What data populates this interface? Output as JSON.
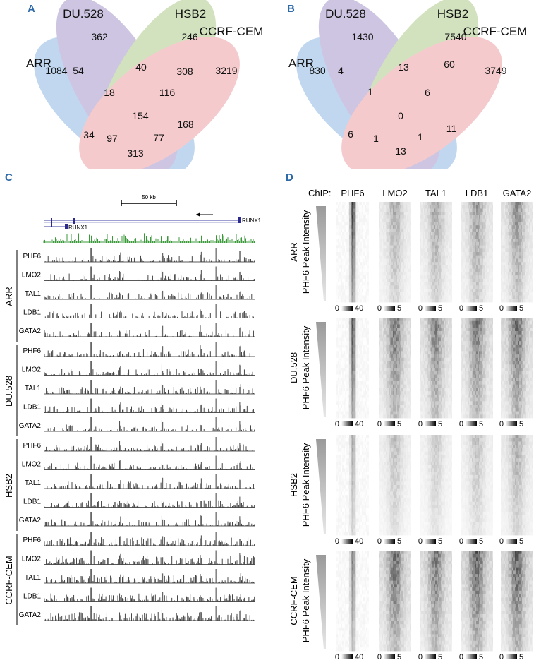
{
  "panels": {
    "a": "A",
    "b": "B",
    "c": "C",
    "d": "D"
  },
  "venn_a": {
    "sets": [
      "ARR",
      "DU.528",
      "HSB2",
      "CCRF-CEM"
    ],
    "colors": [
      "#b7d2ee",
      "#c8bfdf",
      "#cfe0b6",
      "#f3c6c8"
    ],
    "counts": {
      "ARR_only": "1084",
      "DU_only": "362",
      "HSB_only": "246",
      "CCRF_only": "3219",
      "ARR_DU": "54",
      "DU_HSB": "40",
      "HSB_CCRF": "308",
      "ARR_DU_HSB": "18",
      "DU_HSB_CCRF": "116",
      "all": "154",
      "ARR_HSB": "34",
      "ARR_HSB_CCRF": "97",
      "ARR_DU_CCRF": "77",
      "DU_CCRF": "168",
      "ARR_CCRF": "313"
    }
  },
  "venn_b": {
    "sets": [
      "ARR",
      "DU.528",
      "HSB2",
      "CCRF-CEM"
    ],
    "counts": {
      "ARR_only": "830",
      "DU_only": "1430",
      "HSB_only": "7540",
      "CCRF_only": "3749",
      "ARR_DU": "4",
      "DU_HSB": "13",
      "HSB_CCRF": "60",
      "ARR_DU_HSB": "1",
      "DU_HSB_CCRF": "6",
      "all": "0",
      "ARR_HSB": "6",
      "ARR_HSB_CCRF": "1",
      "ARR_DU_CCRF": "1",
      "DU_CCRF": "11",
      "ARR_CCRF": "13"
    }
  },
  "tracks": {
    "scale_label": "50 kb",
    "gene_right": "RUNX1",
    "gene_left": "RUNX1",
    "groups": [
      {
        "cell": "ARR",
        "tracks": [
          "PHF6",
          "LMO2",
          "TAL1",
          "LDB1",
          "GATA2"
        ]
      },
      {
        "cell": "DU.528",
        "tracks": [
          "PHF6",
          "LMO2",
          "TAL1",
          "LDB1",
          "GATA2"
        ]
      },
      {
        "cell": "HSB2",
        "tracks": [
          "PHF6",
          "LMO2",
          "TAL1",
          "LDB1",
          "GATA2"
        ]
      },
      {
        "cell": "CCRF-CEM",
        "tracks": [
          "PHF6",
          "LMO2",
          "TAL1",
          "LDB1",
          "GATA2"
        ]
      }
    ]
  },
  "heatmaps": {
    "chip_label": "ChIP:",
    "columns": [
      "PHF6",
      "LMO2",
      "TAL1",
      "LDB1",
      "GATA2"
    ],
    "sort_label": "PHF6 Peak Intensity",
    "rows": [
      {
        "cell": "ARR",
        "scales": [
          {
            "min": "0",
            "max": "40"
          },
          {
            "min": "0",
            "max": "5"
          },
          {
            "min": "0",
            "max": "5"
          },
          {
            "min": "0",
            "max": "5"
          },
          {
            "min": "0",
            "max": "5"
          }
        ]
      },
      {
        "cell": "DU.528",
        "scales": [
          {
            "min": "0",
            "max": "40"
          },
          {
            "min": "0",
            "max": "5"
          },
          {
            "min": "0",
            "max": "5"
          },
          {
            "min": "0",
            "max": "5"
          },
          {
            "min": "0",
            "max": "5"
          }
        ]
      },
      {
        "cell": "HSB2",
        "scales": [
          {
            "min": "0",
            "max": "40"
          },
          {
            "min": "0",
            "max": "5"
          },
          {
            "min": "0",
            "max": "5"
          },
          {
            "min": "0",
            "max": "5"
          },
          {
            "min": "0",
            "max": "5"
          }
        ]
      },
      {
        "cell": "CCRF-CEM",
        "scales": [
          {
            "min": "0",
            "max": "40"
          },
          {
            "min": "0",
            "max": "5"
          },
          {
            "min": "0",
            "max": "5"
          },
          {
            "min": "0",
            "max": "5"
          },
          {
            "min": "0",
            "max": "5"
          }
        ]
      }
    ]
  }
}
